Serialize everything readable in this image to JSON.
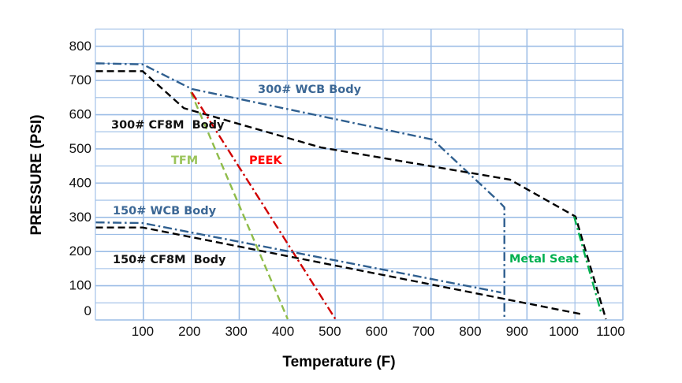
{
  "chart_data": {
    "type": "line",
    "xlabel": "Temperature (F)",
    "ylabel": "PRESSURE (PSI)",
    "xlim": [
      0,
      1125
    ],
    "ylim": [
      0,
      850
    ],
    "grid": true,
    "xticks": [
      "100",
      "200",
      "300",
      "400",
      "500",
      "600",
      "700",
      "800",
      "900",
      "1000",
      "1100"
    ],
    "xtick_values": [
      100,
      200,
      300,
      400,
      500,
      600,
      700,
      800,
      900,
      1000,
      1100
    ],
    "yticks": [
      "0",
      "100",
      "200",
      "300",
      "400",
      "500",
      "600",
      "700",
      "800"
    ],
    "ytick_values": [
      0,
      100,
      200,
      300,
      400,
      500,
      600,
      700,
      800
    ],
    "series": [
      {
        "name": "300# WCB Body",
        "color": "#2f5f8f",
        "style": "dash-dot",
        "x": [
          0,
          100,
          205,
          720,
          862,
          873,
          873
        ],
        "y": [
          748,
          745,
          673,
          525,
          343,
          327,
          0
        ]
      },
      {
        "name": "300# CF8M  Body",
        "color": "#000000",
        "style": "dashed",
        "x": [
          0,
          100,
          188,
          481,
          885,
          1025,
          1090
        ],
        "y": [
          725,
          725,
          617,
          502,
          408,
          300,
          0
        ]
      },
      {
        "name": "TFM",
        "color": "#8fbc4a",
        "style": "dashed",
        "x": [
          203,
          410
        ],
        "y": [
          664,
          0
        ]
      },
      {
        "name": "PEEK",
        "color": "#d00000",
        "style": "dash-dot",
        "x": [
          205,
          512
        ],
        "y": [
          663,
          0
        ]
      },
      {
        "name": "150# WCB Body",
        "color": "#2f5f8f",
        "style": "dash-dot",
        "x": [
          0,
          100,
          866
        ],
        "y": [
          283,
          281,
          78
        ]
      },
      {
        "name": "150# CF8M  Body",
        "color": "#000000",
        "style": "dashed",
        "x": [
          0,
          100,
          1040
        ],
        "y": [
          268,
          268,
          14
        ]
      },
      {
        "name": "Metal Seat",
        "color": "#00b050",
        "style": "dash-dot",
        "x": [
          1022,
          1080
        ],
        "y": [
          300,
          18
        ]
      }
    ],
    "annotations": [
      {
        "text": "300# WCB Body",
        "color": "#3b6795"
      },
      {
        "text": "300# CF8M  Body",
        "color": "#111111"
      },
      {
        "text": "TFM",
        "color": "#9bc45a"
      },
      {
        "text": "PEEK",
        "color": "#ff0000"
      },
      {
        "text": "150# WCB Body",
        "color": "#3b6795"
      },
      {
        "text": "150# CF8M  Body",
        "color": "#111111"
      },
      {
        "text": "Metal Seat",
        "color": "#00b050"
      }
    ]
  }
}
